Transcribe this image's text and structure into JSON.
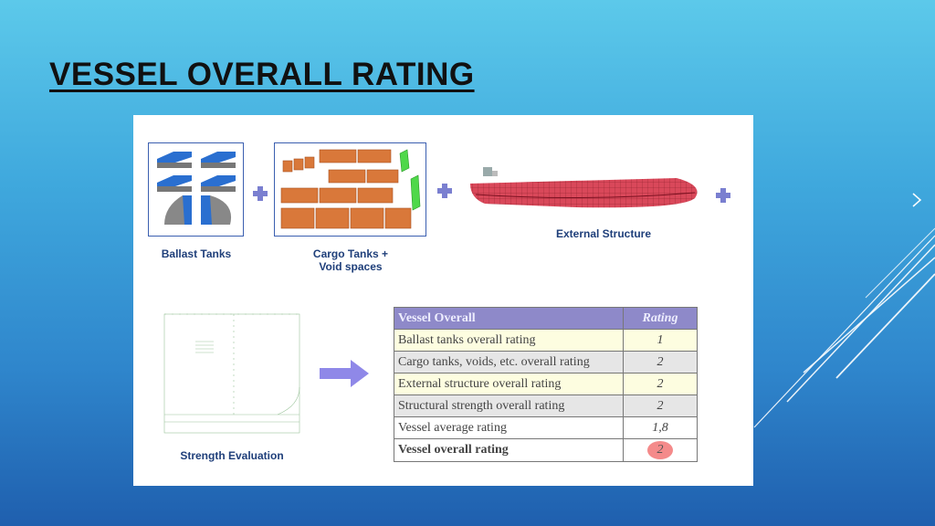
{
  "slide": {
    "title": "VESSEL OVERALL RATING"
  },
  "labels": {
    "ballast": "Ballast Tanks",
    "cargo_line1": "Cargo Tanks +",
    "cargo_line2": "Void spaces",
    "external": "External Structure",
    "strength": "Strength Evaluation"
  },
  "table": {
    "header": {
      "label": "Vessel Overall",
      "rating": "Rating"
    },
    "rows": [
      {
        "label": "Ballast tanks overall rating",
        "rating": "1"
      },
      {
        "label": "Cargo tanks, voids, etc. overall rating",
        "rating": "2"
      },
      {
        "label": "External structure overall rating",
        "rating": "2"
      },
      {
        "label": "Structural strength overall rating",
        "rating": "2"
      },
      {
        "label": "Vessel average rating",
        "rating": "1,8"
      },
      {
        "label": "Vessel overall rating",
        "rating": "2"
      }
    ]
  },
  "colors": {
    "plus": "#7a7fd0",
    "table_header": "#8e89c9",
    "highlight": "#f48a8a",
    "hull": "#d9485a"
  }
}
